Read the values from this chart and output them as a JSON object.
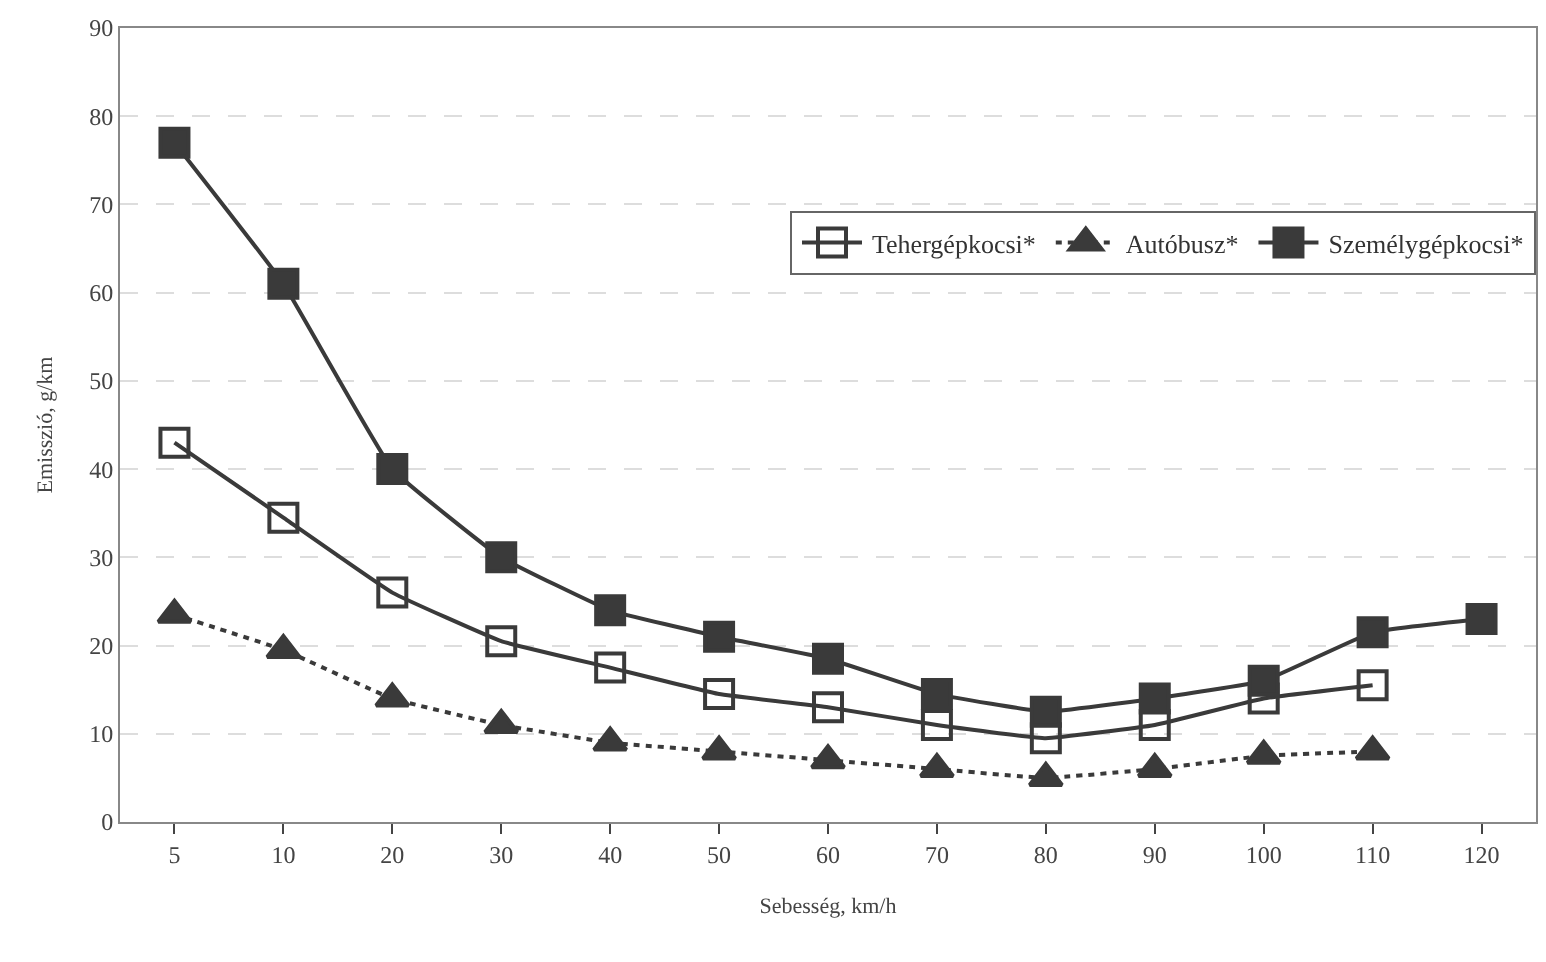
{
  "chart_data": {
    "type": "line",
    "xlabel": "Sebesség, km/h",
    "ylabel": "Emisszió, g/km",
    "categories": [
      "5",
      "10",
      "20",
      "30",
      "40",
      "50",
      "60",
      "70",
      "80",
      "90",
      "100",
      "110",
      "120"
    ],
    "ylim": [
      0,
      90
    ],
    "yticks": [
      0,
      10,
      20,
      30,
      40,
      50,
      60,
      70,
      80,
      90
    ],
    "grid": "y",
    "legend": "top right",
    "series": [
      {
        "name": "Tehergépkocsi*",
        "color": "#3a3a3a",
        "marker": "square-open",
        "line_style": "solid",
        "values": [
          43,
          34.5,
          26,
          20.5,
          17.5,
          14.5,
          13,
          11,
          9.5,
          11,
          14,
          15.5,
          null
        ]
      },
      {
        "name": "Autóbusz*",
        "color": "#3a3a3a",
        "marker": "triangle",
        "line_style": "dotted",
        "values": [
          23.5,
          19.5,
          14,
          11,
          9,
          8,
          7,
          6,
          5,
          6,
          7.5,
          8,
          null
        ]
      },
      {
        "name": "Személygépkocsi*",
        "color": "#3a3a3a",
        "marker": "square",
        "line_style": "solid",
        "values": [
          77,
          61,
          40,
          30,
          24,
          21,
          18.5,
          14.5,
          12.5,
          14,
          16,
          21.5,
          23
        ]
      }
    ]
  }
}
